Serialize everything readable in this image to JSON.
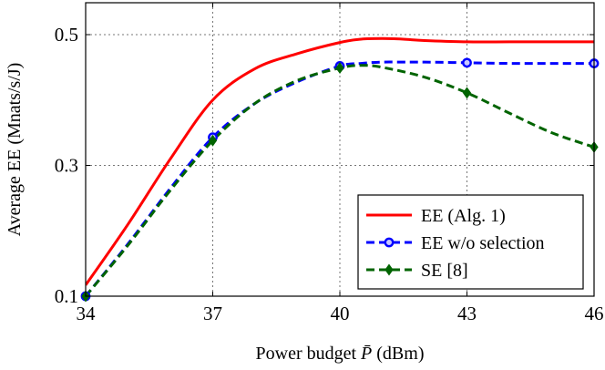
{
  "chart_data": {
    "type": "line",
    "title": "",
    "xlabel": "Power budget",
    "xlabel_symbol": "P̄",
    "xlabel_unit": "(dBm)",
    "ylabel": "Average EE (Mnats/s/J)",
    "xlim": [
      34,
      46
    ],
    "ylim": [
      0.1,
      0.55
    ],
    "xticks": [
      34,
      37,
      40,
      43,
      46
    ],
    "yticks": [
      0.1,
      0.3,
      0.5
    ],
    "ytick_labels": [
      "0.1",
      "0.3",
      "0.5"
    ],
    "grid": true,
    "legend_position": "bottom-right",
    "series": [
      {
        "name": "EE (Alg. 1)",
        "color": "#ff0000",
        "style": "solid",
        "marker": "none",
        "x": [
          34,
          35,
          36,
          37,
          38,
          39,
          40,
          40.5,
          41,
          41.5,
          42,
          43,
          44,
          45,
          46
        ],
        "y": [
          0.117,
          0.21,
          0.31,
          0.4,
          0.448,
          0.471,
          0.488,
          0.493,
          0.494,
          0.493,
          0.491,
          0.489,
          0.489,
          0.489,
          0.489
        ],
        "markers_at": []
      },
      {
        "name": "EE w/o selection",
        "color": "#0000ff",
        "style": "dashed",
        "marker": "circle",
        "x": [
          34,
          35,
          36,
          37,
          38,
          39,
          40,
          40.5,
          41,
          41.5,
          42,
          43,
          44,
          45,
          46
        ],
        "y": [
          0.1,
          0.18,
          0.265,
          0.343,
          0.395,
          0.428,
          0.452,
          0.456,
          0.458,
          0.458,
          0.458,
          0.457,
          0.456,
          0.456,
          0.456
        ],
        "markers_at": [
          34,
          37,
          40,
          43,
          46
        ]
      },
      {
        "name": "SE [8]",
        "color": "#006400",
        "style": "dashed",
        "marker": "diamond",
        "x": [
          34,
          35,
          36,
          37,
          38,
          39,
          40,
          40.5,
          41,
          42,
          43,
          44,
          45,
          46
        ],
        "y": [
          0.1,
          0.178,
          0.262,
          0.338,
          0.395,
          0.43,
          0.449,
          0.453,
          0.45,
          0.435,
          0.411,
          0.38,
          0.35,
          0.328
        ],
        "markers_at": [
          34,
          37,
          40,
          43,
          46
        ]
      }
    ]
  }
}
